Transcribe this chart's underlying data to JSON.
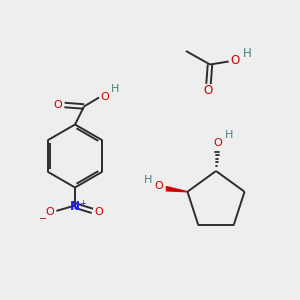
{
  "bg_color": "#eeeeee",
  "bond_color": "#2d2d2d",
  "oxygen_color": "#cc0000",
  "nitrogen_color": "#1a1aee",
  "hydrogen_color": "#4a8080",
  "figsize": [
    3.0,
    3.0
  ],
  "dpi": 100,
  "xlim": [
    0,
    10
  ],
  "ylim": [
    0,
    10
  ]
}
